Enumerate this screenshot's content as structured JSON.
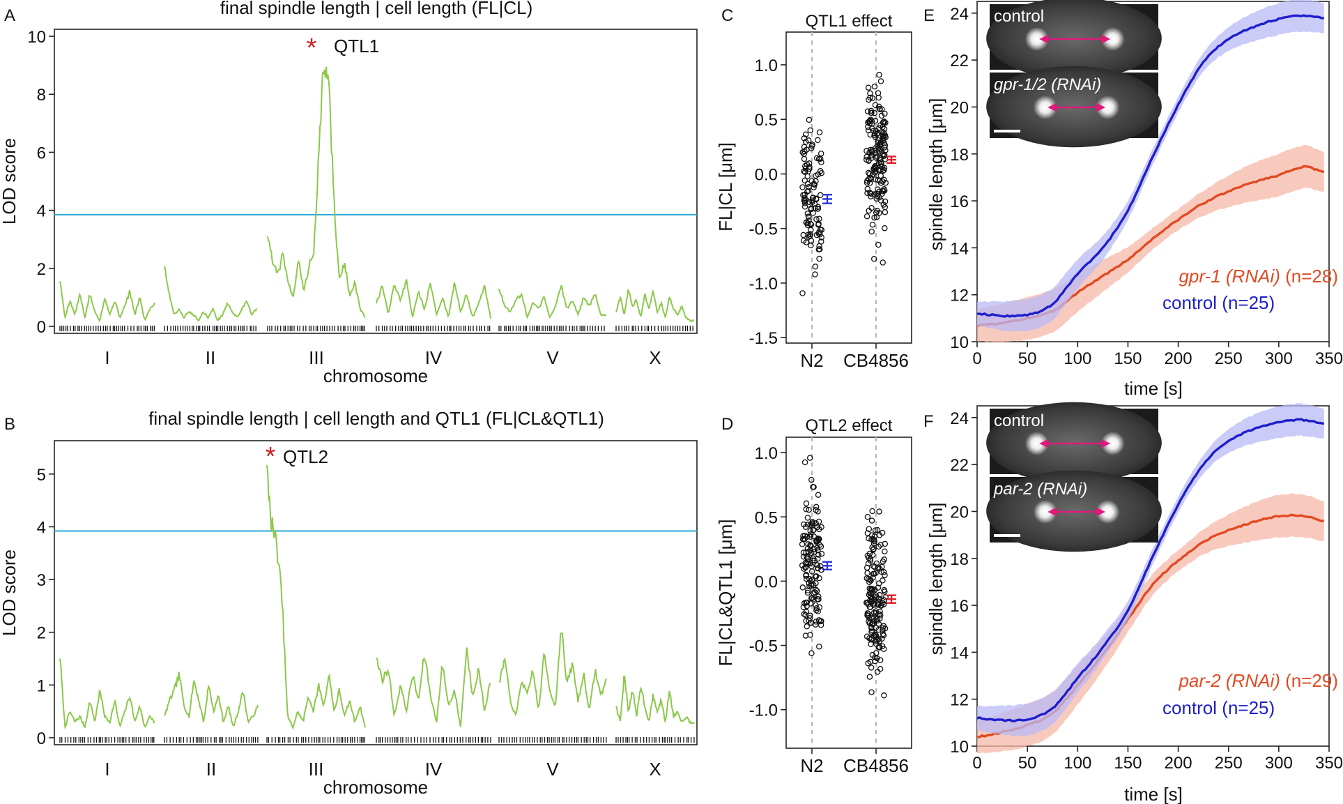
{
  "panels": {
    "A": {
      "letter": "A",
      "chart_data": {
        "type": "line",
        "title": "final spindle length | cell length (FL|CL)",
        "xlabel": "chromosome",
        "ylabel": "LOD score",
        "ylim": [
          0,
          10
        ],
        "yticks": [
          "0",
          "2",
          "4",
          "6",
          "8",
          "10"
        ],
        "categories": [
          "I",
          "II",
          "III",
          "IV",
          "V",
          "X"
        ],
        "threshold": 3.85,
        "series": [
          {
            "values": [
              [
                1.6,
                0.3,
                0.9,
                0.4,
                1.1,
                0.3,
                1.1,
                0.5,
                0.2,
                1.0,
                0.4,
                0.9,
                0.3,
                0.7,
                1.2,
                0.4,
                1.0,
                0.2,
                0.6,
                0.8
              ],
              [
                2.1,
                1.1,
                0.4,
                0.6,
                0.3,
                0.5,
                0.4,
                0.2,
                0.5,
                0.3,
                0.6,
                0.2,
                0.4,
                0.8,
                0.5,
                0.3,
                0.6,
                0.9,
                0.4,
                0.6
              ],
              [
                3.1,
                2.2,
                1.8,
                2.5,
                1.5,
                1.0,
                2.4,
                1.2,
                2.0,
                2.6,
                6.0,
                9.3,
                8.1,
                4.0,
                1.6,
                2.2,
                1.0,
                1.5,
                0.6,
                0.3
              ],
              [
                0.8,
                1.4,
                0.4,
                1.5,
                0.9,
                1.6,
                0.3,
                1.2,
                0.6,
                1.5,
                0.4,
                1.0,
                0.3,
                1.5,
                0.5,
                1.1,
                0.3,
                0.8,
                1.4,
                0.3
              ],
              [
                1.3,
                0.7,
                0.5,
                0.9,
                1.1,
                0.3,
                0.8,
                0.6,
                1.0,
                0.3,
                0.7,
                1.4,
                0.6,
                0.9,
                0.4,
                1.0,
                0.7,
                1.1,
                0.4,
                0.4
              ],
              [
                0.5,
                1.0,
                0.4,
                1.3,
                0.7,
                0.9,
                0.3,
                1.1,
                0.6,
                1.2,
                0.5,
                0.8,
                0.3,
                1.0,
                0.6,
                0.4,
                0.7,
                0.3,
                0.2,
                0.2
              ]
            ]
          }
        ],
        "peak_label": "QTL1",
        "peak_value": 9.3
      }
    },
    "B": {
      "letter": "B",
      "chart_data": {
        "type": "line",
        "title": "final spindle length | cell length and QTL1 (FL|CL&QTL1)",
        "xlabel": "chromosome",
        "ylabel": "LOD score",
        "ylim": [
          0,
          5.5
        ],
        "yticks": [
          "0",
          "1",
          "2",
          "3",
          "4",
          "5"
        ],
        "categories": [
          "I",
          "II",
          "III",
          "IV",
          "V",
          "X"
        ],
        "threshold": 3.92,
        "series": [
          {
            "values": [
              [
                1.55,
                0.2,
                0.5,
                0.3,
                0.4,
                0.2,
                0.7,
                0.3,
                0.9,
                0.4,
                0.3,
                0.7,
                0.2,
                0.5,
                0.8,
                0.3,
                0.6,
                0.2,
                0.4,
                0.3
              ],
              [
                0.4,
                0.7,
                0.9,
                1.2,
                0.6,
                0.4,
                1.1,
                0.7,
                0.3,
                1.0,
                0.5,
                0.8,
                0.3,
                0.6,
                0.2,
                0.5,
                0.9,
                0.3,
                0.4,
                0.6
              ],
              [
                5.05,
                4.0,
                3.6,
                2.5,
                0.4,
                0.2,
                0.5,
                0.3,
                0.8,
                0.5,
                1.0,
                0.6,
                1.2,
                0.5,
                0.9,
                0.4,
                0.7,
                0.3,
                0.6,
                0.2
              ],
              [
                1.5,
                1.1,
                1.3,
                0.4,
                1.0,
                0.5,
                1.2,
                0.7,
                1.6,
                0.8,
                0.3,
                1.4,
                0.6,
                0.9,
                0.2,
                1.7,
                0.8,
                1.3,
                0.5,
                1.1
              ],
              [
                1.0,
                1.5,
                0.7,
                0.4,
                1.1,
                0.8,
                1.3,
                0.5,
                1.6,
                0.9,
                0.6,
                2.15,
                1.0,
                1.4,
                0.7,
                1.2,
                0.5,
                1.3,
                0.8,
                1.1
              ],
              [
                0.6,
                0.3,
                1.2,
                0.5,
                0.9,
                0.4,
                1.0,
                0.6,
                0.3,
                0.8,
                0.5,
                0.7,
                0.3,
                0.9,
                0.4,
                0.5,
                0.3,
                0.4,
                0.3,
                0.3
              ]
            ]
          }
        ],
        "peak_label": "QTL2",
        "peak_value": 5.05
      }
    },
    "C": {
      "letter": "C",
      "chart_data": {
        "type": "scatter",
        "title": "QTL1 effect",
        "ylabel": "FL|CL [μm]",
        "ylim": [
          -1.55,
          1.3
        ],
        "yticks": [
          "-1.5",
          "-1.0",
          "-0.5",
          "0.0",
          "0.5",
          "1.0"
        ],
        "categories": [
          "N2",
          "CB4856"
        ],
        "means": [
          -0.23,
          0.13
        ],
        "sem": [
          0.04,
          0.03
        ],
        "mean_colors": [
          "#2b36d9",
          "#d9222b"
        ]
      }
    },
    "D": {
      "letter": "D",
      "chart_data": {
        "type": "scatter",
        "title": "QTL2 effect",
        "ylabel": "FL|CL&QTL1 [μm]",
        "ylim": [
          -1.3,
          1.12
        ],
        "yticks": [
          "-1.0",
          "-0.5",
          "0.0",
          "0.5",
          "1.0"
        ],
        "categories": [
          "N2",
          "CB4856"
        ],
        "means": [
          0.12,
          -0.14
        ],
        "sem": [
          0.03,
          0.03
        ],
        "mean_colors": [
          "#2b36d9",
          "#d9222b"
        ]
      }
    },
    "E": {
      "letter": "E",
      "chart_data": {
        "type": "line",
        "xlabel": "time [s]",
        "ylabel": "spindle length [μm]",
        "xlim": [
          0,
          350
        ],
        "ylim": [
          10,
          24.5
        ],
        "xticks": [
          "0",
          "50",
          "100",
          "150",
          "200",
          "250",
          "300",
          "350"
        ],
        "yticks": [
          "10",
          "12",
          "14",
          "16",
          "18",
          "20",
          "22",
          "24"
        ],
        "x": [
          0,
          25,
          50,
          75,
          100,
          125,
          150,
          175,
          200,
          225,
          250,
          275,
          300,
          325,
          350
        ],
        "series": [
          {
            "name": "control",
            "n_label": "(n=25)",
            "color": "#1e1ecc",
            "band": "#b9baf5",
            "values": [
              11.2,
              11.1,
              11.15,
              11.6,
              12.9,
              14.0,
              15.6,
              17.9,
              20.1,
              21.9,
              22.9,
              23.4,
              23.75,
              23.9,
              23.75
            ],
            "band_half_width": 0.6
          },
          {
            "name": "gpr-1 (RNAi)",
            "n_label": "(n=28)",
            "color": "#e24a22",
            "band": "#f5b8a8",
            "values": [
              10.7,
              10.8,
              11.0,
              11.3,
              12.1,
              12.8,
              13.5,
              14.4,
              15.2,
              15.9,
              16.4,
              16.8,
              17.1,
              17.45,
              17.15
            ],
            "band_half_width": 0.8
          }
        ],
        "inset": {
          "top_label": "control",
          "bottom_label": "gpr-1/2 (RNAi)"
        }
      }
    },
    "F": {
      "letter": "F",
      "chart_data": {
        "type": "line",
        "xlabel": "time [s]",
        "ylabel": "spindle length [μm]",
        "xlim": [
          0,
          350
        ],
        "ylim": [
          10,
          24.5
        ],
        "xticks": [
          "0",
          "50",
          "100",
          "150",
          "200",
          "250",
          "300",
          "350"
        ],
        "yticks": [
          "10",
          "12",
          "14",
          "16",
          "18",
          "20",
          "22",
          "24"
        ],
        "x": [
          0,
          25,
          50,
          75,
          100,
          125,
          150,
          175,
          200,
          225,
          250,
          275,
          300,
          325,
          350
        ],
        "series": [
          {
            "name": "control",
            "n_label": "(n=25)",
            "color": "#1e1ecc",
            "band": "#b9baf5",
            "values": [
              11.2,
              11.1,
              11.15,
              11.6,
              12.9,
              14.2,
              15.8,
              18.1,
              20.3,
              22.0,
              23.0,
              23.5,
              23.8,
              23.9,
              23.7
            ],
            "band_half_width": 0.6
          },
          {
            "name": "par-2 (RNAi)",
            "n_label": "(n=29)",
            "color": "#e24a22",
            "band": "#f5b8a8",
            "values": [
              10.4,
              10.6,
              10.9,
              11.4,
              12.6,
              13.9,
              15.4,
              16.9,
              17.9,
              18.7,
              19.2,
              19.55,
              19.8,
              19.8,
              19.55
            ],
            "band_half_width": 0.8
          }
        ],
        "inset": {
          "top_label": "control",
          "bottom_label": "par-2 (RNAi)"
        }
      }
    }
  }
}
